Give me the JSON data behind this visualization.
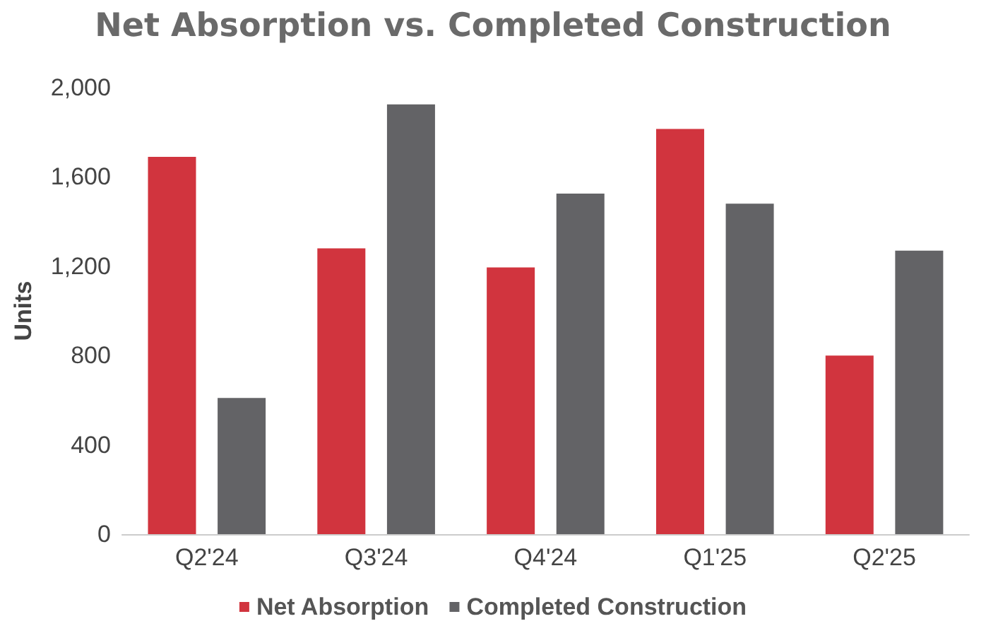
{
  "chart_data": {
    "type": "bar",
    "title": "Net Absorption vs. Completed Construction",
    "ylabel": "Units",
    "categories": [
      "Q2'24",
      "Q3'24",
      "Q4'24",
      "Q1'25",
      "Q2'25"
    ],
    "series": [
      {
        "name": "Net Absorption",
        "color": "#d1343e",
        "values": [
          1690,
          1280,
          1195,
          1815,
          800
        ]
      },
      {
        "name": "Completed Construction",
        "color": "#636366",
        "values": [
          610,
          1925,
          1525,
          1480,
          1270
        ]
      }
    ],
    "ylim": [
      0,
      2000
    ],
    "yticks": [
      0,
      400,
      800,
      {
        "value": 1200,
        "label": "1,200"
      },
      {
        "value": 1600,
        "label": "1,600"
      },
      {
        "value": 2000,
        "label": "2,000"
      }
    ],
    "grid": false,
    "legend": "bottom"
  }
}
